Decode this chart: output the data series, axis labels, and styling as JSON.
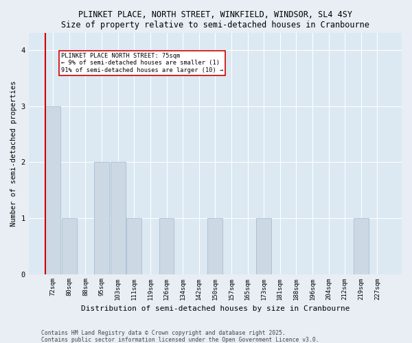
{
  "title_line1": "PLINKET PLACE, NORTH STREET, WINKFIELD, WINDSOR, SL4 4SY",
  "title_line2": "Size of property relative to semi-detached houses in Cranbourne",
  "xlabel": "Distribution of semi-detached houses by size in Cranbourne",
  "ylabel": "Number of semi-detached properties",
  "categories": [
    "72sqm",
    "80sqm",
    "88sqm",
    "95sqm",
    "103sqm",
    "111sqm",
    "119sqm",
    "126sqm",
    "134sqm",
    "142sqm",
    "150sqm",
    "157sqm",
    "165sqm",
    "173sqm",
    "181sqm",
    "188sqm",
    "196sqm",
    "204sqm",
    "212sqm",
    "219sqm",
    "227sqm"
  ],
  "values": [
    3,
    1,
    0,
    2,
    2,
    1,
    0,
    1,
    0,
    0,
    1,
    0,
    0,
    1,
    0,
    0,
    0,
    0,
    0,
    1,
    0
  ],
  "bar_color": "#ccd8e4",
  "bar_edge_color": "#a0b8cc",
  "highlight_line_color": "#cc0000",
  "annotation_text": "PLINKET PLACE NORTH STREET: 75sqm\n← 9% of semi-detached houses are smaller (1)\n91% of semi-detached houses are larger (10) →",
  "annotation_box_color": "white",
  "annotation_box_edge": "#cc0000",
  "footnote1": "Contains HM Land Registry data © Crown copyright and database right 2025.",
  "footnote2": "Contains public sector information licensed under the Open Government Licence v3.0.",
  "ylim": [
    0,
    4.3
  ],
  "yticks": [
    0,
    1,
    2,
    3,
    4
  ],
  "background_color": "#e8eef4",
  "plot_bg_color": "#dce8f2",
  "title_fontsize": 8.5,
  "axis_fontsize": 7.5,
  "tick_fontsize": 6.5,
  "annot_fontsize": 6.2
}
